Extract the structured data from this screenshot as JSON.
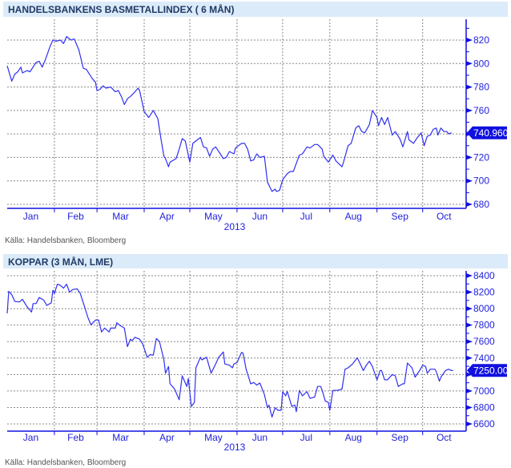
{
  "source_label": "Källa: Handelsbanken, Bloomberg",
  "colors": {
    "header_bg": "#dcebf9",
    "line": "#3030f0",
    "axis": "#1010e0",
    "grid": "#888888",
    "tag_bg": "#1010e0"
  },
  "chart_data": [
    {
      "type": "line",
      "title": "HANDELSBANKENS BASMETALLINDEX ( 6 MÅN)",
      "xlabel": "2013",
      "x_unit": "day of year 2013",
      "months": [
        {
          "label": "Jan",
          "start": 0
        },
        {
          "label": "Feb",
          "start": 31
        },
        {
          "label": "Mar",
          "start": 59
        },
        {
          "label": "Apr",
          "start": 90
        },
        {
          "label": "May",
          "start": 120
        },
        {
          "label": "Jun",
          "start": 151
        },
        {
          "label": "Jul",
          "start": 181
        },
        {
          "label": "Aug",
          "start": 212
        },
        {
          "label": "Sep",
          "start": 243
        },
        {
          "label": "Oct",
          "start": 273
        }
      ],
      "month_end": 301,
      "yticks": [
        820,
        800,
        780,
        760,
        740,
        720,
        700,
        680
      ],
      "ytick_labels": [
        "820",
        "800",
        "780",
        "760",
        "",
        "720",
        "700",
        "680"
      ],
      "minor_step": 10,
      "ylim": [
        678,
        835
      ],
      "last_value": 740.96,
      "last_label": "740.960",
      "grid": true,
      "series": [
        {
          "name": "Basmetallindex",
          "x": [
            0,
            3,
            5,
            7,
            9,
            10,
            13,
            15,
            19,
            21,
            23,
            25,
            28,
            30,
            32,
            35,
            37,
            39,
            42,
            44,
            47,
            50,
            52,
            56,
            58,
            59,
            61,
            63,
            65,
            68,
            71,
            73,
            75,
            77,
            79,
            81,
            84,
            86,
            87,
            90,
            93,
            96,
            99,
            101,
            103,
            104,
            106,
            107,
            111,
            113,
            115,
            117,
            120,
            122,
            124,
            127,
            129,
            131,
            133,
            135,
            137,
            140,
            142,
            144,
            146,
            149,
            150,
            154,
            156,
            158,
            160,
            162,
            164,
            166,
            169,
            171,
            174,
            176,
            177,
            179,
            181,
            184,
            186,
            188,
            190,
            192,
            194,
            197,
            199,
            202,
            204,
            207,
            208,
            211,
            214,
            216,
            220,
            221,
            224,
            226,
            229,
            231,
            233,
            235,
            238,
            240,
            243,
            244,
            246,
            248,
            250,
            253,
            255,
            258,
            260,
            263,
            264,
            267,
            269,
            272,
            274,
            276,
            278,
            280,
            282,
            283,
            285,
            287,
            289,
            290,
            292
          ],
          "y": [
            798,
            785,
            791,
            793,
            797,
            792,
            794,
            793,
            801,
            802,
            797,
            803,
            814,
            820,
            819,
            820,
            817,
            823,
            820,
            821,
            812,
            796,
            795,
            787,
            784,
            777,
            778,
            781,
            779,
            780,
            776,
            777,
            772,
            765,
            770,
            772,
            776,
            779,
            777,
            759,
            754,
            760,
            753,
            736,
            721,
            719,
            712,
            716,
            719,
            727,
            736,
            734,
            716,
            732,
            734,
            737,
            729,
            728,
            721,
            727,
            729,
            723,
            719,
            720,
            725,
            723,
            728,
            732,
            732,
            727,
            717,
            718,
            723,
            720,
            721,
            699,
            691,
            693,
            691,
            692,
            701,
            706,
            708,
            708,
            715,
            722,
            723,
            729,
            728,
            731,
            731,
            727,
            721,
            716,
            722,
            717,
            712,
            716,
            730,
            732,
            745,
            747,
            742,
            741,
            748,
            760,
            754,
            747,
            754,
            748,
            754,
            739,
            742,
            736,
            729,
            742,
            735,
            732,
            736,
            741,
            730,
            738,
            739,
            744,
            745,
            739,
            745,
            742,
            742,
            740,
            741
          ]
        }
      ]
    },
    {
      "type": "line",
      "title": "KOPPAR (3 MÅN, LME)",
      "xlabel": "2013",
      "x_unit": "day of year 2013",
      "months": [
        {
          "label": "Jan",
          "start": 0
        },
        {
          "label": "Feb",
          "start": 31
        },
        {
          "label": "Mar",
          "start": 59
        },
        {
          "label": "Apr",
          "start": 90
        },
        {
          "label": "May",
          "start": 120
        },
        {
          "label": "Jun",
          "start": 151
        },
        {
          "label": "Jul",
          "start": 181
        },
        {
          "label": "Aug",
          "start": 212
        },
        {
          "label": "Sep",
          "start": 243
        },
        {
          "label": "Oct",
          "start": 273
        }
      ],
      "month_end": 301,
      "yticks": [
        8400,
        8200,
        8000,
        7800,
        7600,
        7400,
        7200,
        7000,
        6800,
        6600
      ],
      "ytick_labels": [
        "8400",
        "8200",
        "8000",
        "7800",
        "7600",
        "7400",
        "",
        "7000",
        "6800",
        "6600"
      ],
      "minor_step": 100,
      "ylim": [
        6570,
        8470
      ],
      "last_value": 7250.0,
      "last_label": "7250.00",
      "grid": true,
      "series": [
        {
          "name": "Koppar",
          "x": [
            0,
            1,
            3,
            5,
            8,
            10,
            13,
            16,
            17,
            19,
            21,
            24,
            26,
            29,
            30,
            31,
            33,
            35,
            37,
            39,
            41,
            43,
            46,
            48,
            50,
            53,
            55,
            58,
            60,
            62,
            64,
            67,
            68,
            71,
            72,
            74,
            77,
            79,
            81,
            82,
            84,
            87,
            89,
            92,
            94,
            96,
            98,
            100,
            103,
            104,
            106,
            107,
            110,
            113,
            115,
            118,
            119,
            121,
            123,
            124,
            127,
            128,
            131,
            134,
            137,
            139,
            142,
            143,
            146,
            148,
            149,
            151,
            154,
            155,
            157,
            160,
            162,
            164,
            166,
            169,
            171,
            172,
            174,
            176,
            178,
            180,
            181,
            183,
            184,
            187,
            189,
            190,
            192,
            194,
            197,
            199,
            202,
            204,
            206,
            207,
            209,
            211,
            212,
            214,
            217,
            220,
            222,
            224,
            227,
            230,
            232,
            234,
            236,
            238,
            240,
            243,
            245,
            246,
            248,
            250,
            253,
            255,
            257,
            260,
            261,
            263,
            266,
            268,
            271,
            273,
            275,
            276,
            278,
            281,
            282,
            284,
            285,
            288,
            290,
            292,
            293
          ],
          "y": [
            7942,
            8210,
            8168,
            8087,
            8081,
            8113,
            8023,
            7958,
            8061,
            8061,
            8135,
            8103,
            8039,
            8071,
            8223,
            8184,
            8297,
            8281,
            8248,
            8297,
            8200,
            8232,
            8239,
            8184,
            8071,
            7894,
            7803,
            7861,
            7861,
            7716,
            7764,
            7716,
            7764,
            7764,
            7829,
            7797,
            7764,
            7539,
            7629,
            7610,
            7652,
            7629,
            7571,
            7410,
            7442,
            7436,
            7636,
            7603,
            7377,
            7216,
            7297,
            7087,
            7023,
            6894,
            7184,
            7055,
            7152,
            6813,
            6862,
            7281,
            7410,
            7377,
            7410,
            7216,
            7329,
            7410,
            7474,
            7329,
            7313,
            7281,
            7329,
            7345,
            7468,
            7458,
            7265,
            7087,
            7103,
            7071,
            7097,
            6958,
            6797,
            6829,
            6684,
            6797,
            6765,
            6765,
            6991,
            6942,
            6996,
            6813,
            6829,
            6749,
            7007,
            6942,
            6991,
            6910,
            6926,
            7055,
            7055,
            7007,
            6878,
            6862,
            6765,
            7007,
            7007,
            7023,
            7265,
            7281,
            7329,
            7403,
            7329,
            7248,
            7313,
            7361,
            7297,
            7136,
            7248,
            7248,
            7136,
            7136,
            7200,
            7184,
            7055,
            7087,
            7087,
            7339,
            7281,
            7168,
            7248,
            7313,
            7297,
            7216,
            7265,
            7265,
            7232,
            7119,
            7168,
            7248,
            7265,
            7248,
            7248
          ]
        }
      ]
    }
  ]
}
